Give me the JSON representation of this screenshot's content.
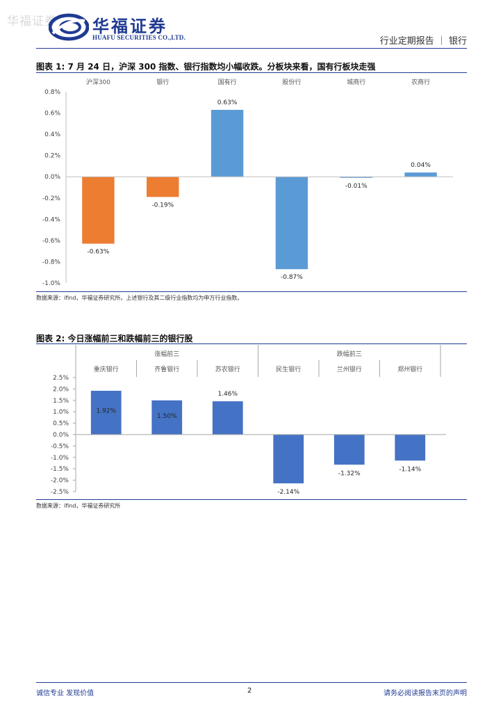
{
  "watermark": "华福证券",
  "header": {
    "logo_cn": "华福证券",
    "logo_en": "HUAFU SECURITIES CO.,LTD.",
    "report_type": "行业定期报告 ｜ 银行",
    "brand_color": "#1f3a93"
  },
  "figure1": {
    "title": "图表 1:  7 月 24 日，沪深 300 指数、银行指数均小幅收跌。分板块来看，国有行板块走强",
    "source": "数据来源：ifind，华福证券研究所。上述银行及其二级行业指数均为申万行业指数。"
  },
  "figure2": {
    "title": "图表 2:  今日涨幅前三和跌幅前三的银行股",
    "source": "数据来源：ifind，华福证券研究所"
  },
  "chart_data": [
    {
      "type": "bar",
      "categories": [
        "沪深300",
        "银行",
        "国有行",
        "股份行",
        "城商行",
        "农商行"
      ],
      "values": [
        -0.63,
        -0.19,
        0.63,
        -0.87,
        -0.01,
        0.04
      ],
      "value_labels": [
        "-0.63%",
        "-0.19%",
        "0.63%",
        "-0.87%",
        "-0.01%",
        "0.04%"
      ],
      "colors": [
        "#ed7d31",
        "#ed7d31",
        "#5b9bd5",
        "#5b9bd5",
        "#5b9bd5",
        "#5b9bd5"
      ],
      "ylim": [
        -1.0,
        0.8
      ],
      "yticks": [
        "0.8%",
        "0.6%",
        "0.4%",
        "0.2%",
        "0.0%",
        "-0.2%",
        "-0.4%",
        "-0.6%",
        "-0.8%",
        "-1.0%"
      ],
      "xlabel": "",
      "ylabel": "",
      "grid": false
    },
    {
      "type": "bar",
      "groups": [
        {
          "label": "涨幅前三",
          "categories": [
            "重庆银行",
            "齐鲁银行",
            "苏农银行"
          ]
        },
        {
          "label": "跌幅前三",
          "categories": [
            "民生银行",
            "兰州银行",
            "郑州银行"
          ]
        }
      ],
      "categories": [
        "重庆银行",
        "齐鲁银行",
        "苏农银行",
        "民生银行",
        "兰州银行",
        "郑州银行"
      ],
      "values": [
        1.92,
        1.5,
        1.46,
        -2.14,
        -1.32,
        -1.14
      ],
      "value_labels": [
        "1.92%",
        "1.50%",
        "1.46%",
        "-2.14%",
        "-1.32%",
        "-1.14%"
      ],
      "color": "#4472c4",
      "ylim": [
        -2.5,
        2.5
      ],
      "yticks": [
        "2.5%",
        "2.0%",
        "1.5%",
        "1.0%",
        "0.5%",
        "0.0%",
        "-0.5%",
        "-1.0%",
        "-1.5%",
        "-2.0%",
        "-2.5%"
      ],
      "xlabel": "",
      "ylabel": "",
      "grid": false
    }
  ],
  "footer": {
    "left": "诚信专业  发现价值",
    "page": "2",
    "right": "请务必阅读报告末页的声明"
  }
}
